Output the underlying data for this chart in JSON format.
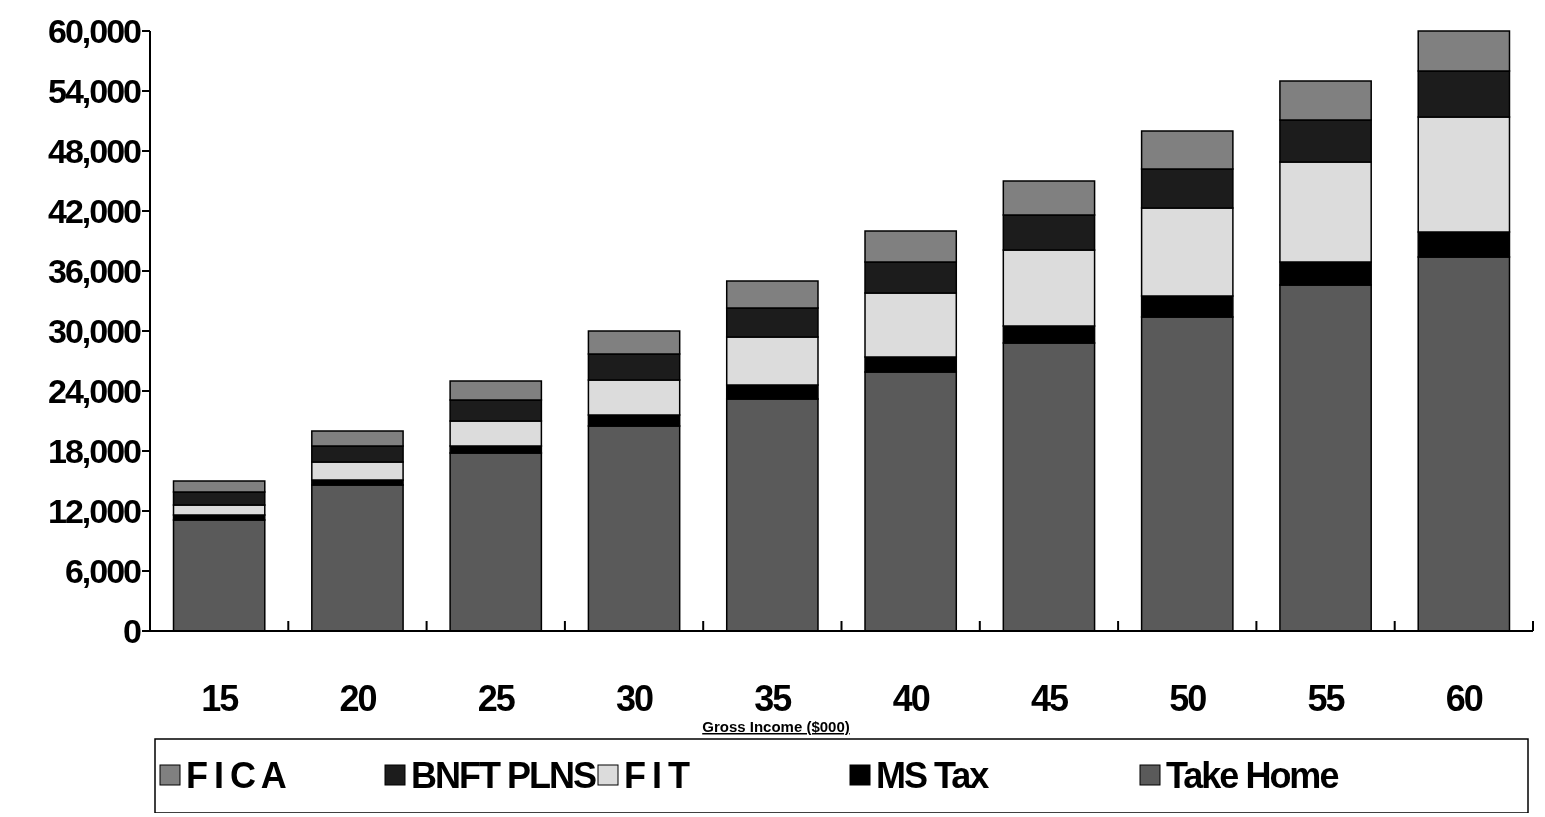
{
  "chart_data": {
    "type": "bar",
    "stacked": true,
    "xlabel": "Gross Income ($000)",
    "categories": [
      "15",
      "20",
      "25",
      "30",
      "35",
      "40",
      "45",
      "50",
      "55",
      "60"
    ],
    "series": [
      {
        "name": "Take Home",
        "color": "#5a5a5a",
        "values": [
          11100,
          14600,
          17800,
          20500,
          23200,
          25900,
          28800,
          31400,
          34600,
          37400
        ]
      },
      {
        "name": "MS Tax",
        "color": "#000000",
        "values": [
          500,
          500,
          700,
          1100,
          1400,
          1500,
          1700,
          2100,
          2300,
          2500
        ]
      },
      {
        "name": "F I T",
        "color": "#dcdcdc",
        "values": [
          1000,
          1800,
          2500,
          3500,
          4800,
          6400,
          7600,
          8800,
          10000,
          11500
        ]
      },
      {
        "name": "BNFT PLNS",
        "color": "#1c1c1c",
        "values": [
          1300,
          1600,
          2100,
          2600,
          2900,
          3100,
          3500,
          3900,
          4200,
          4600
        ]
      },
      {
        "name": "F I C A",
        "color": "#808080",
        "values": [
          1100,
          1500,
          1900,
          2300,
          2700,
          3100,
          3400,
          3800,
          3900,
          4000
        ]
      }
    ],
    "ylim": [
      0,
      60000
    ],
    "yticks": [
      {
        "value": 0,
        "label": "0"
      },
      {
        "value": 6000,
        "label": "6,000"
      },
      {
        "value": 12000,
        "label": "12,000"
      },
      {
        "value": 18000,
        "label": "18,000"
      },
      {
        "value": 24000,
        "label": "24,000"
      },
      {
        "value": 30000,
        "label": "30,000"
      },
      {
        "value": 36000,
        "label": "36,000"
      },
      {
        "value": 42000,
        "label": "42,000"
      },
      {
        "value": 48000,
        "label": "48,000"
      },
      {
        "value": 54000,
        "label": "54,000"
      },
      {
        "value": 60000,
        "label": "60,000"
      }
    ],
    "grid": false,
    "legend": "bottom"
  }
}
